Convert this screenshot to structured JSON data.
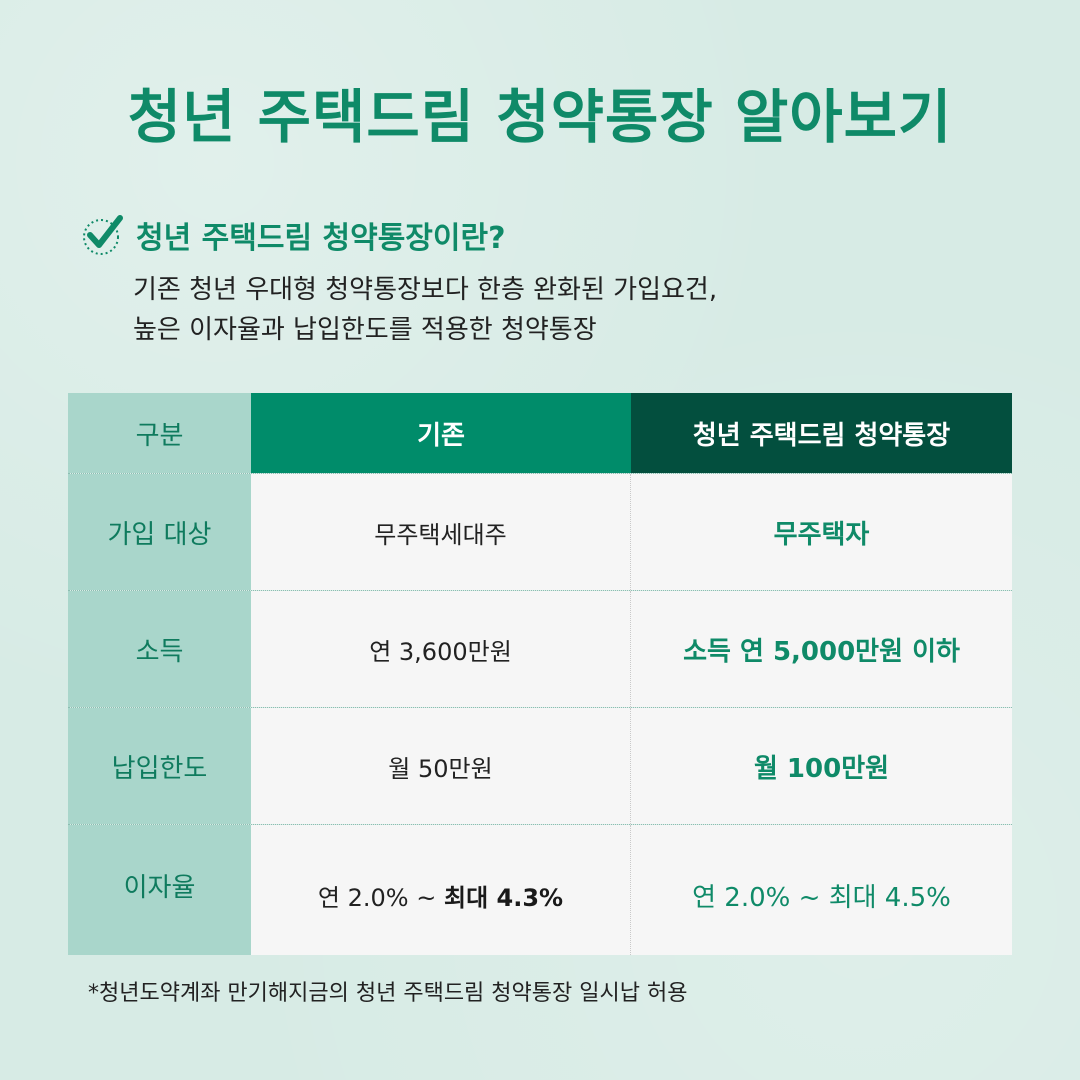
{
  "title": "청년 주택드림 청약통장 알아보기",
  "section": {
    "icon": "checkmark-icon",
    "title": "청년 주택드림 청약통장이란?",
    "desc_line1": "기존 청년 우대형 청약통장보다 한층 완화된 가입요건,",
    "desc_line2": "높은 이자율과 납입한도를 적용한 청약통장"
  },
  "table": {
    "headers": {
      "category": "구분",
      "existing": "기존",
      "new": "청년 주택드림 청약통장"
    },
    "rows": [
      {
        "label": "가입 대상",
        "existing": "무주택세대주",
        "new": "무주택자"
      },
      {
        "label": "소득",
        "existing": "연 3,600만원",
        "new": "소득 연 5,000만원 이하"
      },
      {
        "label": "납입한도",
        "existing": "월 50만원",
        "new": "월 100만원"
      },
      {
        "label": "이자율",
        "existing_prefix": "연 2.0% ~ ",
        "existing_bold": "최대 4.3%",
        "new_prefix": "연 2.0% ~ ",
        "new_bold": "최대 4.5%"
      }
    ]
  },
  "footnote": "*청년도약계좌 만기해지금의 청년 주택드림 청약통장 일시납 허용",
  "colors": {
    "accent": "#0f8a68",
    "header_existing": "#008c6a",
    "header_new": "#034f3e",
    "label_column": "#a9d6cb",
    "background": "#d7ebe5"
  }
}
